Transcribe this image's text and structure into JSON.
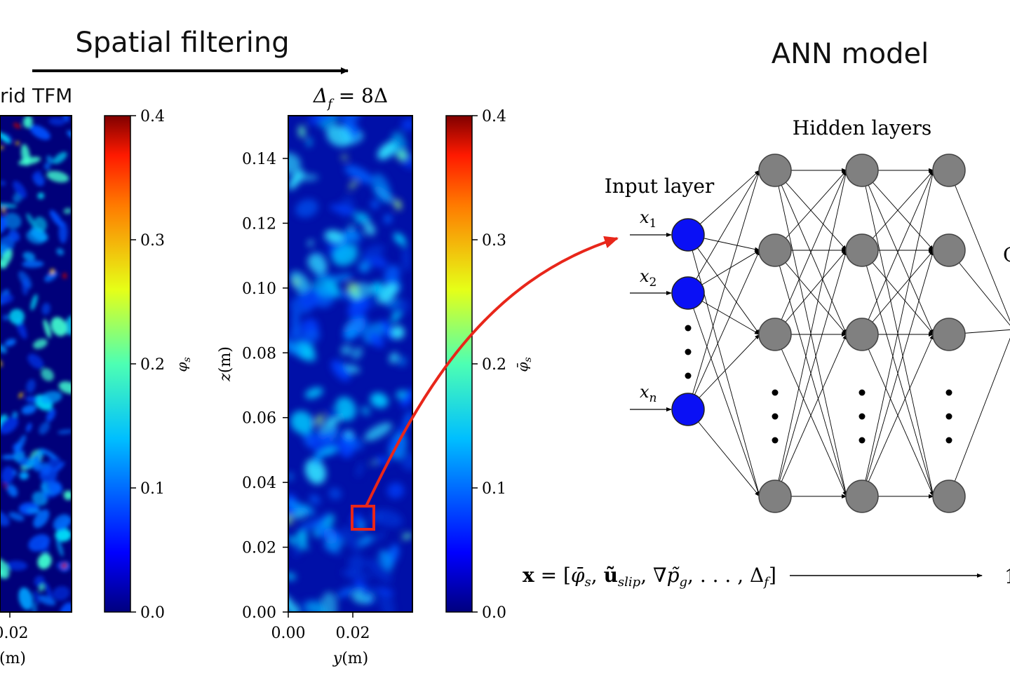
{
  "header": {
    "filtering_label": "Spatial filtering",
    "ann_label": "ANN model"
  },
  "panel_left": {
    "title": "rid TFM",
    "colorbar_ticks": [
      "0.4",
      "0.3",
      "0.2",
      "0.1",
      "0.0"
    ],
    "colorbar_label": "φ_s",
    "x_tick": "0.02",
    "x_label": "(m)"
  },
  "panel_right": {
    "title": "Δ_f = 8Δ",
    "y_ticks": [
      "0.14",
      "0.12",
      "0.10",
      "0.08",
      "0.06",
      "0.04",
      "0.02",
      "0.00"
    ],
    "y_label": "z (m)",
    "x_ticks": [
      "0.00",
      "0.02"
    ],
    "x_label": "y(m)",
    "colorbar_ticks": [
      "0.4",
      "0.3",
      "0.2",
      "0.1",
      "0.0"
    ],
    "colorbar_label": "φ̄_s"
  },
  "network": {
    "hidden_label": "Hidden layers",
    "input_label": "Input layer",
    "inputs": [
      "x1",
      "x2",
      "xn"
    ],
    "output_cut": "C",
    "input_vector": "x = [φ̄_s, ũ_slip, ∇p̃_g, ..., Δ_f]",
    "output_cut_tail": "1"
  },
  "colors": {
    "input_node": "#0a10f5",
    "hidden_node": "#808080",
    "highlight": "#e8261a",
    "arrow": "#e8261a"
  }
}
